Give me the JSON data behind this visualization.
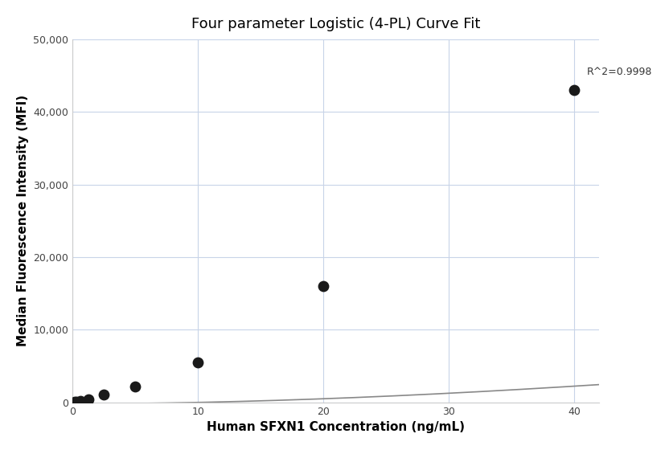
{
  "title": "Four parameter Logistic (4-PL) Curve Fit",
  "xlabel": "Human SFXN1 Concentration (ng/mL)",
  "ylabel": "Median Fluorescence Intensity (MFI)",
  "scatter_x": [
    0.16,
    0.31,
    0.63,
    1.25,
    2.5,
    5.0,
    10.0,
    20.0,
    40.0
  ],
  "scatter_y": [
    50,
    100,
    220,
    430,
    1050,
    2200,
    5500,
    16000,
    43000
  ],
  "r_squared": "R^2=0.9998",
  "xlim": [
    0,
    42
  ],
  "ylim": [
    0,
    50000
  ],
  "yticks": [
    0,
    10000,
    20000,
    30000,
    40000,
    50000
  ],
  "xticks": [
    0,
    10,
    20,
    30,
    40
  ],
  "curve_color": "#888888",
  "dot_color": "#1a1a1a",
  "background_color": "#ffffff",
  "grid_color": "#c8d4e8",
  "title_fontsize": 13,
  "label_fontsize": 11,
  "4pl_A": -200,
  "4pl_B": 1.85,
  "4pl_C": 200,
  "4pl_D": 50000
}
